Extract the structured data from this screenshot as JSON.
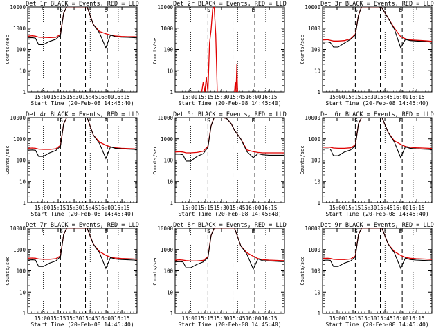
{
  "figure": {
    "xlabel": "Start Time (20-Feb-08 14:45:40)",
    "ylabel": "Counts/sec",
    "background": "#ffffff",
    "axis_color": "#000000",
    "events_color": "#000000",
    "lld_color": "#e00000"
  },
  "chart_data": [
    {
      "type": "line",
      "title": "Det 1r BLACK = Events, RED = LLD",
      "xlabel": "Start Time (20-Feb-08 14:45:40)",
      "ylabel": "Counts/sec",
      "scale": "log",
      "ylim": [
        1,
        10000
      ],
      "xtick_labels": [
        "15:00",
        "15:15",
        "15:30",
        "15:45",
        "16:00",
        "16:15"
      ],
      "ytick_labels": [
        "1",
        "10",
        "100",
        "1000",
        "10000"
      ],
      "markers": [
        "S",
        "E"
      ],
      "events": {
        "x": [
          0,
          3,
          5,
          7,
          10,
          14,
          18,
          21,
          23,
          25,
          27,
          30,
          33,
          36,
          38,
          42,
          46,
          50,
          53,
          56,
          60,
          64,
          68,
          70
        ],
        "y": [
          350,
          360,
          340,
          170,
          170,
          240,
          300,
          480,
          5000,
          12000,
          12000,
          12000,
          12000,
          12000,
          12000,
          1500,
          600,
          120,
          480,
          400,
          380,
          370,
          360,
          350
        ]
      },
      "lld": {
        "x": [
          0,
          3,
          5,
          7,
          10,
          14,
          18,
          21,
          23,
          25,
          27,
          30,
          33,
          36,
          38,
          42,
          46,
          50,
          53,
          56,
          60,
          64,
          68,
          70
        ],
        "y": [
          420,
          440,
          420,
          380,
          370,
          360,
          370,
          520,
          5000,
          12000,
          12000,
          12000,
          12000,
          12000,
          12000,
          1500,
          700,
          550,
          480,
          430,
          410,
          400,
          400,
          390
        ]
      }
    },
    {
      "type": "line",
      "title": "Det 2r BLACK = Events, RED = LLD",
      "xlabel": "Start Time (20-Feb-08 14:45:40)",
      "ylabel": "Counts/sec",
      "scale": "log",
      "ylim": [
        1,
        10000
      ],
      "xtick_labels": [
        "15:00",
        "15:15",
        "15:30",
        "15:45",
        "16:00",
        "16:15"
      ],
      "ytick_labels": [
        "1",
        "10",
        "100",
        "1000",
        "10000"
      ],
      "markers": [
        "S",
        "E"
      ],
      "events": {
        "x": [],
        "y": []
      },
      "lld": {
        "x": [
          17,
          18,
          19,
          20,
          21,
          22,
          23,
          24,
          25,
          26,
          27
        ],
        "y": [
          1,
          3,
          1,
          5,
          1,
          200,
          800,
          8000,
          12000,
          500,
          1
        ]
      },
      "lld_extra": {
        "x": [
          38,
          38.5,
          39,
          39.5,
          40
        ],
        "y": [
          1,
          3,
          1,
          20,
          1
        ]
      }
    },
    {
      "type": "line",
      "title": "Det 3r BLACK = Events, RED = LLD",
      "xlabel": "Start Time (20-Feb-08 14:45:40)",
      "ylabel": "Counts/sec",
      "scale": "log",
      "ylim": [
        1,
        10000
      ],
      "xtick_labels": [
        "15:00",
        "15:15",
        "15:30",
        "15:45",
        "16:00",
        "16:15"
      ],
      "ytick_labels": [
        "1",
        "10",
        "100",
        "1000",
        "10000"
      ],
      "markers": [
        "S",
        "E"
      ],
      "events": {
        "x": [
          0,
          3,
          5,
          7,
          10,
          14,
          18,
          21,
          23,
          25,
          27,
          30,
          33,
          36,
          38,
          42,
          46,
          50,
          53,
          56,
          60,
          64,
          68,
          70
        ],
        "y": [
          220,
          230,
          210,
          130,
          130,
          200,
          300,
          480,
          4000,
          12000,
          12000,
          12000,
          12000,
          12000,
          9000,
          3000,
          900,
          120,
          300,
          260,
          250,
          240,
          230,
          220
        ]
      },
      "lld": {
        "x": [
          0,
          3,
          5,
          7,
          10,
          14,
          18,
          21,
          23,
          25,
          27,
          30,
          33,
          36,
          38,
          42,
          46,
          50,
          53,
          56,
          60,
          64,
          68,
          70
        ],
        "y": [
          280,
          290,
          270,
          250,
          250,
          260,
          320,
          520,
          4000,
          12000,
          12000,
          12000,
          12000,
          12000,
          9000,
          3000,
          1000,
          400,
          320,
          280,
          270,
          260,
          250,
          240
        ]
      }
    },
    {
      "type": "line",
      "title": "Det 4r BLACK = Events, RED = LLD",
      "xlabel": "Start Time (20-Feb-08 14:45:40)",
      "ylabel": "Counts/sec",
      "scale": "log",
      "ylim": [
        1,
        10000
      ],
      "xtick_labels": [
        "15:00",
        "15:15",
        "15:30",
        "15:45",
        "16:00",
        "16:15"
      ],
      "ytick_labels": [
        "1",
        "10",
        "100",
        "1000",
        "10000"
      ],
      "markers": [
        "S",
        "E"
      ],
      "events": {
        "x": [
          0,
          3,
          5,
          7,
          10,
          14,
          18,
          21,
          23,
          25,
          27,
          30,
          33,
          36,
          38,
          42,
          46,
          50,
          53,
          56,
          60,
          64,
          68,
          70
        ],
        "y": [
          290,
          300,
          290,
          150,
          150,
          220,
          280,
          450,
          5000,
          12000,
          12000,
          12000,
          12000,
          12000,
          12000,
          1500,
          600,
          120,
          420,
          360,
          340,
          330,
          320,
          310
        ]
      },
      "lld": {
        "x": [
          0,
          3,
          5,
          7,
          10,
          14,
          18,
          21,
          23,
          25,
          27,
          30,
          33,
          36,
          38,
          42,
          46,
          50,
          53,
          56,
          60,
          64,
          68,
          70
        ],
        "y": [
          360,
          370,
          360,
          330,
          320,
          320,
          340,
          500,
          5000,
          12000,
          12000,
          12000,
          12000,
          12000,
          12000,
          1500,
          700,
          500,
          420,
          380,
          360,
          350,
          340,
          330
        ]
      }
    },
    {
      "type": "line",
      "title": "Det 5r BLACK = Events, RED = LLD",
      "xlabel": "Start Time (20-Feb-08 14:45:40)",
      "ylabel": "Counts/sec",
      "scale": "log",
      "ylim": [
        1,
        10000
      ],
      "xtick_labels": [
        "15:00",
        "15:15",
        "15:30",
        "15:45",
        "16:00",
        "16:15"
      ],
      "ytick_labels": [
        "1",
        "10",
        "100",
        "1000",
        "10000"
      ],
      "markers": [
        "S",
        "E"
      ],
      "events": {
        "x": [
          0,
          3,
          5,
          7,
          10,
          14,
          18,
          21,
          23,
          25,
          27,
          30,
          33,
          36,
          38,
          42,
          46,
          50,
          53,
          56,
          60,
          64,
          68,
          70
        ],
        "y": [
          190,
          190,
          180,
          90,
          90,
          150,
          200,
          400,
          4000,
          12000,
          12000,
          12000,
          9000,
          5000,
          2500,
          1000,
          250,
          130,
          200,
          180,
          170,
          170,
          170,
          170
        ]
      },
      "lld": {
        "x": [
          0,
          3,
          5,
          7,
          10,
          14,
          18,
          21,
          23,
          25,
          27,
          30,
          33,
          36,
          38,
          42,
          46,
          50,
          53,
          56,
          60,
          64,
          68,
          70
        ],
        "y": [
          240,
          250,
          240,
          220,
          220,
          230,
          260,
          450,
          4000,
          12000,
          12000,
          12000,
          9000,
          5000,
          2500,
          1000,
          300,
          250,
          230,
          220,
          220,
          220,
          220,
          220
        ]
      }
    },
    {
      "type": "line",
      "title": "Det 6r BLACK = Events, RED = LLD",
      "xlabel": "Start Time (20-Feb-08 14:45:40)",
      "ylabel": "Counts/sec",
      "scale": "log",
      "ylim": [
        1,
        10000
      ],
      "xtick_labels": [
        "15:00",
        "15:15",
        "15:30",
        "15:45",
        "16:00",
        "16:15"
      ],
      "ytick_labels": [
        "1",
        "10",
        "100",
        "1000",
        "10000"
      ],
      "markers": [
        "S",
        "E"
      ],
      "events": {
        "x": [
          0,
          3,
          5,
          7,
          10,
          14,
          18,
          21,
          23,
          25,
          27,
          30,
          33,
          36,
          38,
          42,
          46,
          50,
          53,
          56,
          60,
          64,
          68,
          70
        ],
        "y": [
          330,
          340,
          330,
          160,
          160,
          240,
          300,
          480,
          5000,
          12000,
          12000,
          12000,
          12000,
          12000,
          12000,
          2000,
          700,
          130,
          420,
          360,
          340,
          330,
          320,
          310
        ]
      },
      "lld": {
        "x": [
          0,
          3,
          5,
          7,
          10,
          14,
          18,
          21,
          23,
          25,
          27,
          30,
          33,
          36,
          38,
          42,
          46,
          50,
          53,
          56,
          60,
          64,
          68,
          70
        ],
        "y": [
          400,
          410,
          400,
          370,
          360,
          360,
          380,
          520,
          5000,
          12000,
          12000,
          12000,
          12000,
          12000,
          12000,
          2000,
          800,
          550,
          440,
          400,
          380,
          370,
          360,
          350
        ]
      }
    },
    {
      "type": "line",
      "title": "Det 7r BLACK = Events, RED = LLD",
      "xlabel": "Start Time (20-Feb-08 14:45:40)",
      "ylabel": "Counts/sec",
      "scale": "log",
      "ylim": [
        1,
        10000
      ],
      "xtick_labels": [
        "15:00",
        "15:15",
        "15:30",
        "15:45",
        "16:00",
        "16:15"
      ],
      "ytick_labels": [
        "1",
        "10",
        "100",
        "1000",
        "10000"
      ],
      "markers": [
        "S",
        "E"
      ],
      "events": {
        "x": [
          0,
          3,
          5,
          7,
          10,
          14,
          18,
          21,
          23,
          25,
          27,
          30,
          33,
          36,
          38,
          42,
          46,
          50,
          53,
          56,
          60,
          64,
          68,
          70
        ],
        "y": [
          320,
          330,
          320,
          160,
          160,
          230,
          290,
          470,
          5000,
          12000,
          12000,
          12000,
          12000,
          12000,
          12000,
          1800,
          700,
          130,
          420,
          360,
          340,
          330,
          320,
          310
        ]
      },
      "lld": {
        "x": [
          0,
          3,
          5,
          7,
          10,
          14,
          18,
          21,
          23,
          25,
          27,
          30,
          33,
          36,
          38,
          42,
          46,
          50,
          53,
          56,
          60,
          64,
          68,
          70
        ],
        "y": [
          390,
          400,
          390,
          360,
          350,
          350,
          370,
          510,
          5000,
          12000,
          12000,
          12000,
          12000,
          12000,
          12000,
          1800,
          800,
          540,
          440,
          400,
          380,
          370,
          360,
          350
        ]
      }
    },
    {
      "type": "line",
      "title": "Det 8r BLACK = Events, RED = LLD",
      "xlabel": "Start Time (20-Feb-08 14:45:40)",
      "ylabel": "Counts/sec",
      "scale": "log",
      "ylim": [
        1,
        10000
      ],
      "xtick_labels": [
        "15:00",
        "15:15",
        "15:30",
        "15:45",
        "16:00",
        "16:15"
      ],
      "ytick_labels": [
        "1",
        "10",
        "100",
        "1000",
        "10000"
      ],
      "markers": [
        "S",
        "E"
      ],
      "events": {
        "x": [
          0,
          3,
          5,
          7,
          10,
          14,
          18,
          21,
          23,
          25,
          27,
          30,
          33,
          36,
          38,
          42,
          46,
          50,
          53,
          56,
          60,
          64,
          68,
          70
        ],
        "y": [
          260,
          270,
          260,
          140,
          140,
          200,
          260,
          420,
          4500,
          12000,
          12000,
          12000,
          12000,
          12000,
          12000,
          1500,
          600,
          120,
          360,
          300,
          290,
          280,
          270,
          270
        ]
      },
      "lld": {
        "x": [
          0,
          3,
          5,
          7,
          10,
          14,
          18,
          21,
          23,
          25,
          27,
          30,
          33,
          36,
          38,
          42,
          46,
          50,
          53,
          56,
          60,
          64,
          68,
          70
        ],
        "y": [
          320,
          330,
          320,
          300,
          290,
          290,
          310,
          460,
          4500,
          12000,
          12000,
          12000,
          12000,
          12000,
          12000,
          1500,
          700,
          480,
          380,
          340,
          320,
          310,
          300,
          300
        ]
      }
    },
    {
      "type": "line",
      "title": "Det 9r BLACK = Events, RED = LLD",
      "xlabel": "Start Time (20-Feb-08 14:45:40)",
      "ylabel": "Counts/sec",
      "scale": "log",
      "ylim": [
        1,
        10000
      ],
      "xtick_labels": [
        "15:00",
        "15:15",
        "15:30",
        "15:45",
        "16:00",
        "16:15"
      ],
      "ytick_labels": [
        "1",
        "10",
        "100",
        "1000",
        "10000"
      ],
      "markers": [
        "S",
        "E"
      ],
      "events": {
        "x": [
          0,
          3,
          5,
          7,
          10,
          14,
          18,
          21,
          23,
          25,
          27,
          30,
          33,
          36,
          38,
          42,
          46,
          50,
          53,
          56,
          60,
          64,
          68,
          70
        ],
        "y": [
          310,
          320,
          310,
          160,
          160,
          230,
          290,
          460,
          5000,
          12000,
          12000,
          12000,
          12000,
          12000,
          12000,
          1800,
          700,
          130,
          400,
          340,
          320,
          310,
          300,
          300
        ]
      },
      "lld": {
        "x": [
          0,
          3,
          5,
          7,
          10,
          14,
          18,
          21,
          23,
          25,
          27,
          30,
          33,
          36,
          38,
          42,
          46,
          50,
          53,
          56,
          60,
          64,
          68,
          70
        ],
        "y": [
          380,
          390,
          380,
          350,
          340,
          340,
          360,
          500,
          5000,
          12000,
          12000,
          12000,
          12000,
          12000,
          12000,
          1800,
          800,
          530,
          430,
          390,
          370,
          360,
          350,
          340
        ]
      }
    }
  ]
}
